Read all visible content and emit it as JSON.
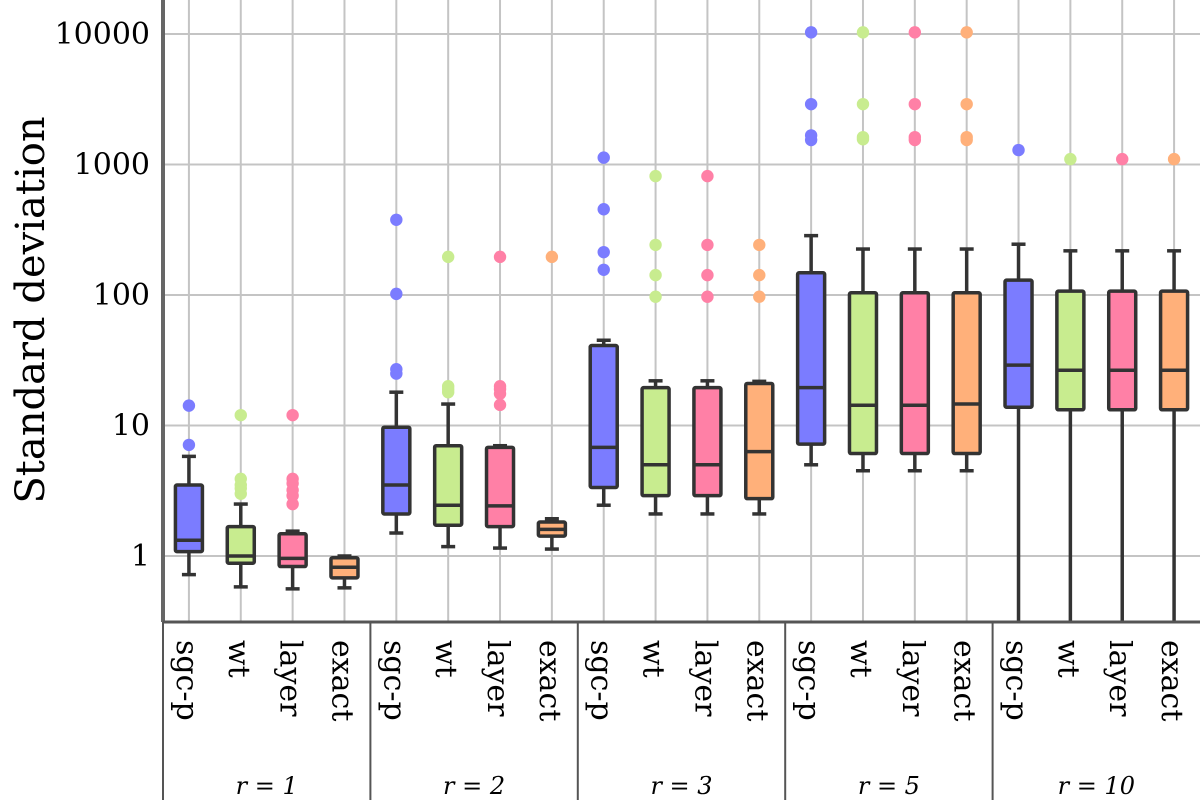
{
  "chart_data": {
    "type": "boxplot",
    "scale": "log",
    "ylabel": "Standard deviation",
    "xlabel": "",
    "ylim": [
      0.33,
      25000
    ],
    "yticks": [
      1,
      10,
      100,
      1000,
      10000
    ],
    "ytick_labels": [
      "1",
      "10",
      "100",
      "1000",
      "10000"
    ],
    "group_prefix": "r = ",
    "groups": [
      {
        "label": "r = 1",
        "boxes": [
          {
            "name": "sgc-p",
            "color": "#7b7cff",
            "whisker_low": 0.72,
            "q1": 1.08,
            "median": 1.32,
            "q3": 3.5,
            "whisker_high": 5.8,
            "outliers": [
              7.1,
              14.2
            ]
          },
          {
            "name": "wt",
            "color": "#c8ec8f",
            "whisker_low": 0.58,
            "q1": 0.88,
            "median": 1.0,
            "q3": 1.68,
            "whisker_high": 2.5,
            "outliers": [
              3.0,
              3.3,
              3.5,
              3.9,
              12.0
            ]
          },
          {
            "name": "layer",
            "color": "#ff80a6",
            "whisker_low": 0.56,
            "q1": 0.83,
            "median": 0.96,
            "q3": 1.48,
            "whisker_high": 1.55,
            "outliers": [
              2.5,
              2.9,
              3.2,
              3.6,
              3.9,
              12.0
            ]
          },
          {
            "name": "exact",
            "color": "#ffb07a",
            "whisker_low": 0.57,
            "q1": 0.68,
            "median": 0.82,
            "q3": 0.97,
            "whisker_high": 1.0,
            "outliers": []
          }
        ]
      },
      {
        "label": "r = 2",
        "boxes": [
          {
            "name": "sgc-p",
            "color": "#7b7cff",
            "whisker_low": 1.5,
            "q1": 2.1,
            "median": 3.5,
            "q3": 9.7,
            "whisker_high": 18.0,
            "outliers": [
              25,
              27,
              102,
              377
            ]
          },
          {
            "name": "wt",
            "color": "#c8ec8f",
            "whisker_low": 1.18,
            "q1": 1.72,
            "median": 2.45,
            "q3": 7.0,
            "whisker_high": 14.6,
            "outliers": [
              18,
              19,
              20,
              196
            ]
          },
          {
            "name": "layer",
            "color": "#ff80a6",
            "whisker_low": 1.15,
            "q1": 1.68,
            "median": 2.42,
            "q3": 6.8,
            "whisker_high": 7.0,
            "outliers": [
              14.4,
              17.5,
              19.0,
              20.0,
              196
            ]
          },
          {
            "name": "exact",
            "color": "#ffb07a",
            "whisker_low": 1.13,
            "q1": 1.42,
            "median": 1.6,
            "q3": 1.82,
            "whisker_high": 1.93,
            "outliers": [
              196
            ]
          }
        ]
      },
      {
        "label": "r = 3",
        "boxes": [
          {
            "name": "sgc-p",
            "color": "#7b7cff",
            "whisker_low": 2.45,
            "q1": 3.35,
            "median": 6.8,
            "q3": 41,
            "whisker_high": 45,
            "outliers": [
              156,
              213,
              454,
              1129
            ]
          },
          {
            "name": "wt",
            "color": "#c8ec8f",
            "whisker_low": 2.1,
            "q1": 2.9,
            "median": 5.0,
            "q3": 19.5,
            "whisker_high": 22,
            "outliers": [
              97,
              142,
              242,
              815
            ]
          },
          {
            "name": "layer",
            "color": "#ff80a6",
            "whisker_low": 2.1,
            "q1": 2.9,
            "median": 5.0,
            "q3": 19.5,
            "whisker_high": 22,
            "outliers": [
              97,
              142,
              242,
              815
            ]
          },
          {
            "name": "exact",
            "color": "#ffb07a",
            "whisker_low": 2.1,
            "q1": 2.75,
            "median": 6.3,
            "q3": 21,
            "whisker_high": 21.8,
            "outliers": [
              97,
              142,
              242
            ]
          }
        ]
      },
      {
        "label": "r = 5",
        "boxes": [
          {
            "name": "sgc-p",
            "color": "#7b7cff",
            "whisker_low": 5.0,
            "q1": 7.2,
            "median": 19.5,
            "q3": 148,
            "whisker_high": 285,
            "outliers": [
              1540,
              1670,
              2900,
              10300
            ]
          },
          {
            "name": "wt",
            "color": "#c8ec8f",
            "whisker_low": 4.5,
            "q1": 6.1,
            "median": 14.3,
            "q3": 104,
            "whisker_high": 225,
            "outliers": [
              1560,
              1620,
              2900,
              10300
            ]
          },
          {
            "name": "layer",
            "color": "#ff80a6",
            "whisker_low": 4.5,
            "q1": 6.1,
            "median": 14.3,
            "q3": 104,
            "whisker_high": 225,
            "outliers": [
              1540,
              1620,
              2900,
              10300
            ]
          },
          {
            "name": "exact",
            "color": "#ffb07a",
            "whisker_low": 4.5,
            "q1": 6.1,
            "median": 14.6,
            "q3": 104,
            "whisker_high": 225,
            "outliers": [
              1540,
              1620,
              2900,
              10300
            ]
          }
        ]
      },
      {
        "label": "r = 10",
        "boxes": [
          {
            "name": "sgc-p",
            "color": "#7b7cff",
            "whisker_low": 0.3,
            "q1": 13.8,
            "median": 29,
            "q3": 130,
            "whisker_high": 245,
            "outliers": [
              1290
            ]
          },
          {
            "name": "wt",
            "color": "#c8ec8f",
            "whisker_low": 0.3,
            "q1": 13.2,
            "median": 26.5,
            "q3": 107,
            "whisker_high": 218,
            "outliers": [
              1100
            ]
          },
          {
            "name": "layer",
            "color": "#ff80a6",
            "whisker_low": 0.3,
            "q1": 13.2,
            "median": 26.5,
            "q3": 107,
            "whisker_high": 218,
            "outliers": [
              1100
            ]
          },
          {
            "name": "exact",
            "color": "#ffb07a",
            "whisker_low": 0.3,
            "q1": 13.2,
            "median": 26.5,
            "q3": 107,
            "whisker_high": 218,
            "outliers": [
              1100
            ]
          }
        ]
      }
    ]
  }
}
